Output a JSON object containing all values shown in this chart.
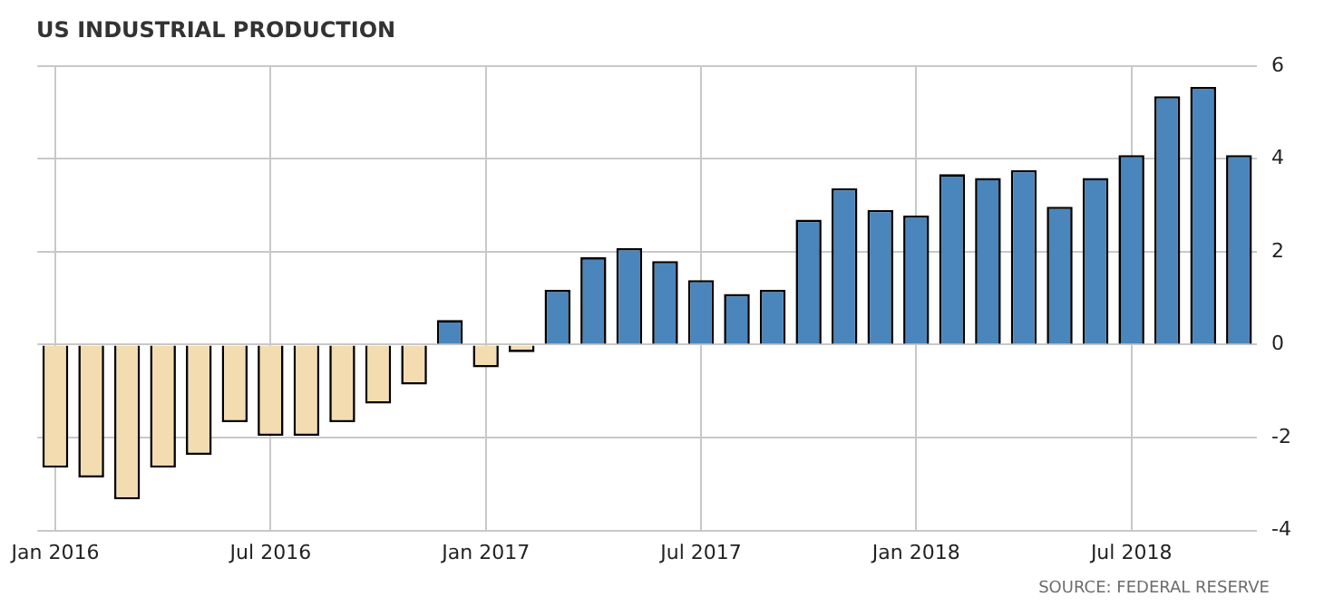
{
  "chart_data": {
    "type": "bar",
    "title": "US INDUSTRIAL PRODUCTION",
    "categories": [
      "Jan 2016",
      null,
      null,
      null,
      null,
      null,
      "Jul 2016",
      null,
      null,
      null,
      null,
      null,
      "Jan 2017",
      null,
      null,
      null,
      null,
      null,
      "Jul 2017",
      null,
      null,
      null,
      null,
      null,
      "Jan 2018",
      null,
      null,
      null,
      null,
      null,
      "Jul 2018",
      null,
      null,
      null
    ],
    "values": [
      -2.65,
      -2.86,
      -3.33,
      -2.65,
      -2.37,
      -1.67,
      -1.96,
      -1.96,
      -1.67,
      -1.27,
      -0.86,
      0.53,
      -0.49,
      -0.16,
      1.18,
      1.88,
      2.08,
      1.8,
      1.39,
      1.09,
      1.18,
      2.69,
      3.37,
      2.9,
      2.78,
      3.67,
      3.59,
      3.76,
      2.97,
      3.59,
      4.08,
      5.35,
      5.55,
      4.08
    ],
    "colors": [
      "#f3dcb0",
      "#f3dcb0",
      "#f3dcb0",
      "#f3dcb0",
      "#f3dcb0",
      "#f3dcb0",
      "#f3dcb0",
      "#f3dcb0",
      "#f3dcb0",
      "#f3dcb0",
      "#f3dcb0",
      "#4a85bb",
      "#f3dcb0",
      "#f3dcb0",
      "#4a85bb",
      "#4a85bb",
      "#4a85bb",
      "#4a85bb",
      "#4a85bb",
      "#4a85bb",
      "#4a85bb",
      "#4a85bb",
      "#4a85bb",
      "#4a85bb",
      "#4a85bb",
      "#4a85bb",
      "#4a85bb",
      "#4a85bb",
      "#4a85bb",
      "#4a85bb",
      "#4a85bb",
      "#4a85bb",
      "#4a85bb",
      "#4a85bb"
    ],
    "ylim": [
      -4,
      6
    ],
    "yticks": [
      -4,
      -2,
      0,
      2,
      4,
      6
    ],
    "grid": true,
    "annotations": [
      "SOURCE: FEDERAL RESERVE"
    ]
  }
}
